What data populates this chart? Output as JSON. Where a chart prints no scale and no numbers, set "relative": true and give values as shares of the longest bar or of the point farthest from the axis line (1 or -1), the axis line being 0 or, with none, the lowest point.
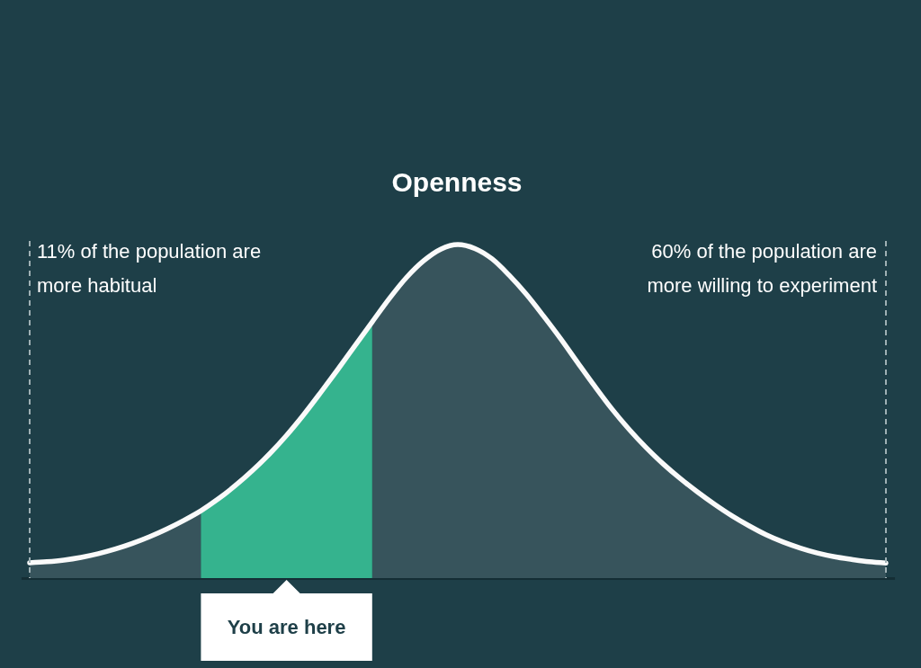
{
  "chart_data": {
    "type": "area",
    "title": "Openness",
    "relative": true,
    "categories": [
      null,
      null,
      null,
      null,
      null,
      null,
      null,
      null,
      null,
      null,
      null,
      null,
      null,
      null,
      null,
      null,
      null,
      null,
      null,
      null,
      null,
      null,
      null,
      null,
      null,
      null,
      null,
      null,
      null,
      null,
      null,
      null,
      null,
      null,
      null,
      null,
      null,
      null,
      null,
      null,
      null,
      null,
      null,
      null,
      null,
      null,
      null,
      null,
      null,
      null,
      null
    ],
    "series": [
      {
        "color": "#37545c",
        "values": [
          0.046,
          0.049,
          0.054,
          0.062,
          0.073,
          0.087,
          0.104,
          0.124,
          0.147,
          0.173,
          0.202,
          null,
          null,
          null,
          null,
          null,
          null,
          null,
          null,
          null,
          0.768,
          0.838,
          0.901,
          0.951,
          0.986,
          1,
          0.988,
          0.957,
          0.908,
          0.851,
          0.786,
          0.718,
          0.646,
          0.575,
          0.507,
          0.446,
          0.391,
          0.342,
          0.298,
          0.258,
          0.221,
          0.187,
          0.157,
          0.13,
          0.108,
          0.09,
          0.075,
          0.064,
          0.056,
          0.049,
          0.045
        ]
      },
      {
        "color": "#35b38e",
        "values": [
          null,
          null,
          null,
          null,
          null,
          null,
          null,
          null,
          null,
          null,
          0.202,
          0.237,
          0.277,
          0.322,
          0.372,
          0.428,
          0.49,
          0.557,
          0.626,
          0.697,
          0.768,
          null,
          null,
          null,
          null,
          null,
          null,
          null,
          null,
          null,
          null,
          null,
          null,
          null,
          null,
          null,
          null,
          null,
          null,
          null,
          null,
          null,
          null,
          null,
          null,
          null,
          null,
          null,
          null,
          null,
          null
        ]
      },
      {
        "type": "line",
        "color": "#fafafa",
        "values": [
          0.046,
          0.049,
          0.054,
          0.062,
          0.073,
          0.087,
          0.104,
          0.124,
          0.147,
          0.173,
          0.202,
          0.237,
          0.277,
          0.322,
          0.372,
          0.428,
          0.49,
          0.557,
          0.626,
          0.697,
          0.768,
          0.838,
          0.901,
          0.951,
          0.986,
          1,
          0.988,
          0.957,
          0.908,
          0.851,
          0.786,
          0.718,
          0.646,
          0.575,
          0.507,
          0.446,
          0.391,
          0.342,
          0.298,
          0.258,
          0.221,
          0.187,
          0.157,
          0.13,
          0.108,
          0.09,
          0.075,
          0.064,
          0.056,
          0.049,
          0.045
        ]
      }
    ],
    "annotations": [
      "11% of the population are\nmore habitual",
      "60% of the population are\nmore willing to experiment",
      "You are here"
    ]
  }
}
